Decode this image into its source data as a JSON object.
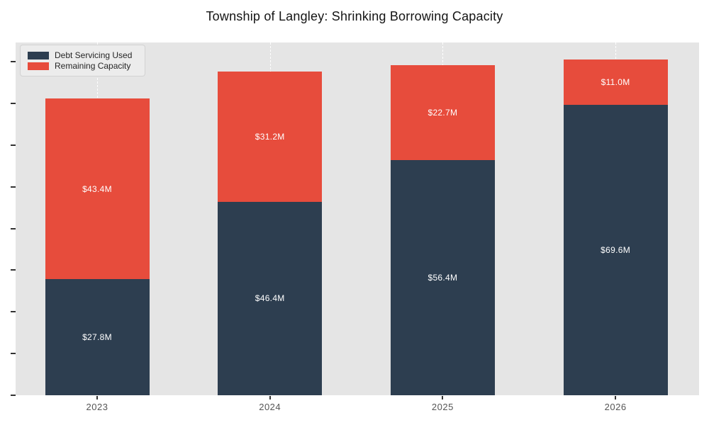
{
  "title": "Township of Langley: Shrinking Borrowing Capacity",
  "chart_data": {
    "type": "bar",
    "stacked": true,
    "title": "Township of Langley: Shrinking Borrowing Capacity",
    "categories": [
      "2023",
      "2024",
      "2025",
      "2026"
    ],
    "series": [
      {
        "name": "Debt Servicing Used",
        "color": "#2d3e50",
        "values": [
          27.8,
          46.4,
          56.4,
          69.6
        ],
        "value_labels": [
          "$27.8M",
          "$46.4M",
          "$56.4M",
          "$69.6M"
        ]
      },
      {
        "name": "Remaining Capacity",
        "color": "#e74c3c",
        "values": [
          43.4,
          31.2,
          22.7,
          11.0
        ],
        "value_labels": [
          "$43.4M",
          "$31.2M",
          "$22.7M",
          "$11.0M"
        ]
      }
    ],
    "unit": "millions of dollars",
    "xlabel": "",
    "ylabel": "",
    "ylim": [
      0,
      84.6
    ],
    "y_tick_step": 10,
    "y_tick_max": 80,
    "y_tick_labels_visible": false,
    "grid": {
      "vertical_dashed": true,
      "color": "#ffffff"
    },
    "plot_background": "#e5e5e5",
    "legend_position": "top-left",
    "label_color": "#ffffff",
    "axis_label_color": "#555555"
  }
}
